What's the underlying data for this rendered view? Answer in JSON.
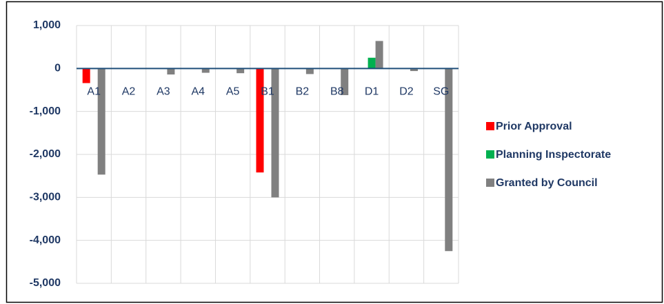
{
  "chart_data": {
    "type": "bar",
    "categories": [
      "A1",
      "A2",
      "A3",
      "A4",
      "A5",
      "B1",
      "B2",
      "B8",
      "D1",
      "D2",
      "SG"
    ],
    "series": [
      {
        "name": "Prior Approval",
        "color": "#ff0000",
        "values": [
          -340,
          0,
          0,
          0,
          0,
          -2420,
          0,
          0,
          0,
          0,
          0
        ]
      },
      {
        "name": "Planning Inspectorate",
        "color": "#00b050",
        "values": [
          0,
          0,
          0,
          0,
          0,
          0,
          0,
          0,
          250,
          0,
          0
        ]
      },
      {
        "name": "Granted by Council",
        "color": "#808080",
        "values": [
          -2470,
          0,
          -140,
          -100,
          -110,
          -3000,
          -130,
          -620,
          640,
          -60,
          -4250
        ]
      }
    ],
    "ylim": [
      -5000,
      1000
    ],
    "yticks": [
      {
        "value": 1000,
        "label": "1,000"
      },
      0,
      {
        "value": -1000,
        "label": "-1,000"
      },
      {
        "value": -2000,
        "label": "-2,000"
      },
      {
        "value": -3000,
        "label": "-3,000"
      },
      {
        "value": -4000,
        "label": "-4,000"
      },
      {
        "value": -5000,
        "label": "-5,000"
      }
    ],
    "grid": true,
    "legend": "right"
  }
}
